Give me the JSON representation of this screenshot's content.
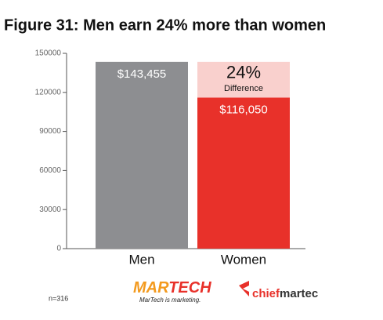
{
  "chart_data": {
    "type": "bar",
    "title": "Figure 31: Men earn 24% more than women",
    "categories": [
      "Men",
      "Women"
    ],
    "values": [
      143455,
      116050
    ],
    "value_labels": [
      "$143,455",
      "$116,050"
    ],
    "colors": [
      "#8d8e91",
      "#e8312a"
    ],
    "difference": {
      "value": 27405,
      "name": "Difference",
      "percent": 24,
      "percent_label": "24%",
      "color": "#f9d0cd"
    },
    "ylim": [
      0,
      150000
    ],
    "yticks": [
      0,
      30000,
      60000,
      90000,
      120000,
      150000
    ],
    "grid": false,
    "note": "n=316",
    "logos": [
      {
        "parts": [
          "MAR",
          "TECH"
        ],
        "tagline": "MarTech is marketing."
      },
      {
        "parts": [
          "chief",
          "martec"
        ]
      }
    ]
  }
}
